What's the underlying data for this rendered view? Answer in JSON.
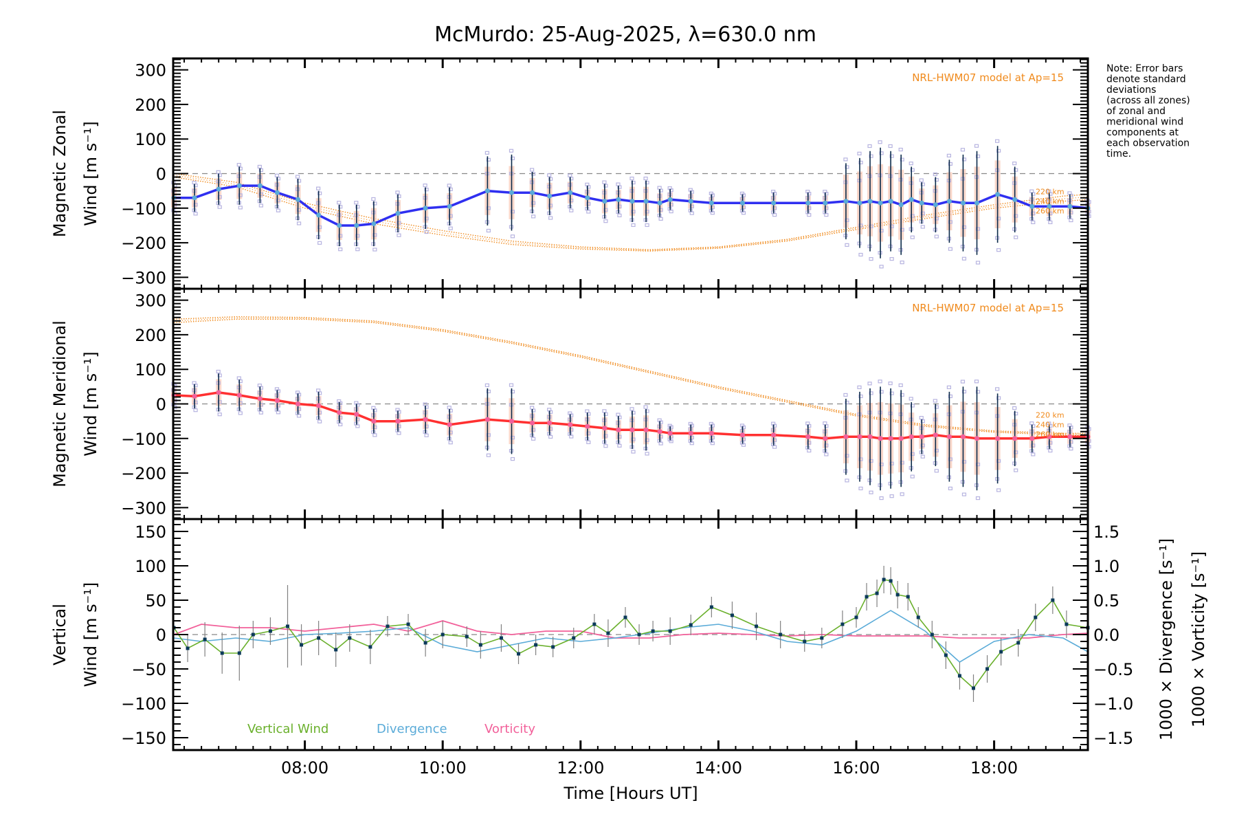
{
  "chart_data": {
    "type": "line",
    "title": "McMurdo: 25-Aug-2025, λ=630.0 nm",
    "note": [
      "Note: Error bars",
      "denote standard",
      "deviations",
      "(across all zones)",
      "of zonal and",
      "meridional wind",
      "components at",
      "each observation",
      "time."
    ],
    "xlabel": "Time [Hours UT]",
    "xlim": [
      6.09,
      19.36
    ],
    "x_ticks": [
      8,
      10,
      12,
      14,
      16,
      18
    ],
    "x_tick_labels": [
      "08:00",
      "10:00",
      "12:00",
      "14:00",
      "16:00",
      "18:00"
    ],
    "colors": {
      "zonal": "#2f2ff0",
      "meridional": "#ff3030",
      "model": "#f08a1c",
      "vertical": "#6ab02c",
      "divergence": "#5aabd8",
      "vorticity": "#f2609a",
      "scatter": "#b7b4e0",
      "point": "#5aabd8",
      "zero_line": "#888888"
    },
    "panels": [
      {
        "id": "zonal",
        "ylabel_line1": "Magnetic Zonal",
        "ylabel_line2": "Wind [m s⁻¹]",
        "ylim": [
          -333,
          333
        ],
        "y_ticks": [
          300,
          200,
          100,
          0,
          -100,
          -200,
          -300
        ],
        "y_tick_labels": [
          "300",
          "200",
          "100",
          "0",
          "−100",
          "−200",
          "−300"
        ],
        "model_label": "NRL-HWM07 model at Ap=15",
        "km_labels": [
          "220 km",
          "240 km",
          "260 km"
        ],
        "x": [
          6.1,
          6.4,
          6.75,
          7.05,
          7.35,
          7.6,
          7.9,
          8.2,
          8.5,
          8.75,
          9.0,
          9.35,
          9.75,
          10.1,
          10.65,
          11.0,
          11.3,
          11.55,
          11.85,
          12.1,
          12.35,
          12.55,
          12.75,
          12.95,
          13.15,
          13.3,
          13.6,
          13.9,
          14.35,
          14.8,
          15.3,
          15.55,
          15.85,
          16.05,
          16.2,
          16.35,
          16.5,
          16.65,
          16.8,
          16.95,
          17.15,
          17.35,
          17.55,
          17.75,
          18.05,
          18.3,
          18.55,
          18.8,
          19.1,
          19.36
        ],
        "values": [
          -70,
          -70,
          -45,
          -35,
          -35,
          -55,
          -75,
          -120,
          -150,
          -150,
          -145,
          -115,
          -100,
          -95,
          -50,
          -55,
          -55,
          -65,
          -55,
          -70,
          -80,
          -75,
          -80,
          -80,
          -85,
          -75,
          -80,
          -85,
          -85,
          -85,
          -85,
          -85,
          -80,
          -85,
          -80,
          -85,
          -80,
          -90,
          -75,
          -85,
          -90,
          -80,
          -85,
          -85,
          -60,
          -75,
          -95,
          -95,
          -95,
          -100
        ],
        "errors": [
          40,
          40,
          45,
          55,
          50,
          45,
          60,
          70,
          60,
          60,
          65,
          55,
          60,
          55,
          100,
          110,
          60,
          55,
          45,
          35,
          50,
          40,
          60,
          60,
          40,
          30,
          30,
          25,
          25,
          30,
          30,
          30,
          110,
          130,
          145,
          160,
          145,
          145,
          95,
          60,
          80,
          120,
          140,
          150,
          140,
          95,
          40,
          40,
          35,
          20
        ],
        "model_x": [
          6.1,
          7.0,
          8.0,
          9.0,
          10.0,
          11.0,
          12.0,
          13.0,
          14.0,
          15.0,
          16.0,
          17.0,
          18.0,
          19.0,
          19.36
        ],
        "model_220": [
          0,
          -25,
          -85,
          -130,
          -165,
          -195,
          -212,
          -220,
          -212,
          -190,
          -155,
          -120,
          -90,
          -65,
          -60
        ],
        "model_260": [
          -10,
          -38,
          -100,
          -145,
          -178,
          -205,
          -218,
          -224,
          -216,
          -195,
          -162,
          -130,
          -100,
          -80,
          -75
        ]
      },
      {
        "id": "meridional",
        "ylabel_line1": "Magnetic Meridional",
        "ylabel_line2": "Wind [m s⁻¹]",
        "ylim": [
          -333,
          333
        ],
        "y_ticks": [
          300,
          200,
          100,
          0,
          -100,
          -200,
          -300
        ],
        "y_tick_labels": [
          "300",
          "200",
          "100",
          "0",
          "−100",
          "−200",
          "−300"
        ],
        "model_label": "NRL-HWM07 model at Ap=15",
        "km_labels": [
          "220 km",
          "240 km",
          "260 km"
        ],
        "x": [
          6.1,
          6.4,
          6.75,
          7.05,
          7.35,
          7.6,
          7.9,
          8.2,
          8.5,
          8.75,
          9.0,
          9.35,
          9.75,
          10.1,
          10.65,
          11.0,
          11.3,
          11.55,
          11.85,
          12.1,
          12.35,
          12.55,
          12.75,
          12.95,
          13.15,
          13.3,
          13.6,
          13.9,
          14.35,
          14.8,
          15.3,
          15.55,
          15.85,
          16.05,
          16.2,
          16.35,
          16.5,
          16.65,
          16.8,
          16.95,
          17.15,
          17.35,
          17.55,
          17.75,
          18.05,
          18.3,
          18.55,
          18.8,
          19.1,
          19.36
        ],
        "values": [
          25,
          22,
          33,
          25,
          15,
          10,
          0,
          -5,
          -25,
          -30,
          -50,
          -50,
          -45,
          -60,
          -45,
          -50,
          -55,
          -55,
          -60,
          -65,
          -70,
          -75,
          -75,
          -75,
          -80,
          -85,
          -85,
          -85,
          -90,
          -90,
          -95,
          -100,
          -95,
          -95,
          -95,
          -100,
          -100,
          -100,
          -95,
          -95,
          -90,
          -95,
          -95,
          -100,
          -100,
          -100,
          -100,
          -95,
          -95,
          -95
        ],
        "errors": [
          30,
          35,
          55,
          45,
          35,
          30,
          30,
          40,
          30,
          30,
          35,
          30,
          40,
          45,
          90,
          95,
          40,
          35,
          30,
          40,
          45,
          40,
          55,
          60,
          30,
          20,
          25,
          25,
          25,
          30,
          35,
          40,
          110,
          130,
          140,
          150,
          145,
          140,
          100,
          50,
          90,
          130,
          145,
          150,
          130,
          80,
          40,
          35,
          30,
          25
        ],
        "model_x": [
          6.1,
          7.0,
          8.0,
          9.0,
          10.0,
          11.0,
          12.0,
          13.0,
          14.0,
          15.0,
          16.0,
          17.0,
          18.0,
          19.0,
          19.36
        ],
        "model_220": [
          245,
          252,
          250,
          240,
          215,
          180,
          140,
          95,
          50,
          10,
          -30,
          -60,
          -78,
          -85,
          -85
        ],
        "model_260": [
          235,
          245,
          245,
          235,
          210,
          175,
          135,
          90,
          45,
          5,
          -35,
          -65,
          -82,
          -90,
          -90
        ]
      },
      {
        "id": "vertical",
        "ylabel_line1": "Vertical",
        "ylabel_line2": "Wind [m s⁻¹]",
        "ylim": [
          -168,
          168
        ],
        "y_ticks": [
          150,
          100,
          50,
          0,
          -50,
          -100,
          -150
        ],
        "y_tick_labels": [
          "150",
          "100",
          "50",
          "0",
          "−50",
          "−100",
          "−150"
        ],
        "y2_label_div": "1000 × Divergence [s⁻¹]",
        "y2_label_vort": "1000 × Vorticity [s⁻¹]",
        "y2lim": [
          -1.68,
          1.68
        ],
        "y2_ticks": [
          1.5,
          1.0,
          0.5,
          0.0,
          -0.5,
          -1.0,
          -1.5
        ],
        "y2_tick_labels": [
          "1.5",
          "1.0",
          "0.5",
          "0.0",
          "−0.5",
          "−1.0",
          "−1.5"
        ],
        "legend": [
          "Vertical Wind",
          "Divergence",
          "Vorticity"
        ],
        "vertical_x": [
          6.1,
          6.3,
          6.55,
          6.8,
          7.05,
          7.25,
          7.5,
          7.75,
          7.95,
          8.2,
          8.45,
          8.65,
          8.95,
          9.2,
          9.5,
          9.75,
          10.0,
          10.35,
          10.55,
          10.85,
          11.1,
          11.35,
          11.6,
          11.9,
          12.2,
          12.4,
          12.65,
          12.85,
          13.05,
          13.3,
          13.6,
          13.9,
          14.2,
          14.55,
          14.9,
          15.25,
          15.5,
          15.8,
          16.0,
          16.15,
          16.3,
          16.4,
          16.5,
          16.6,
          16.75,
          16.9,
          17.1,
          17.3,
          17.5,
          17.7,
          17.9,
          18.1,
          18.35,
          18.6,
          18.85,
          19.05,
          19.36
        ],
        "vertical": [
          10,
          -20,
          -7,
          -27,
          -27,
          0,
          5,
          12,
          -15,
          -5,
          -22,
          -5,
          -18,
          12,
          15,
          -12,
          0,
          -3,
          -15,
          -5,
          -28,
          -15,
          -18,
          -5,
          15,
          2,
          25,
          0,
          5,
          5,
          14,
          40,
          28,
          12,
          0,
          -10,
          -5,
          15,
          25,
          55,
          60,
          80,
          78,
          58,
          55,
          25,
          0,
          -30,
          -60,
          -78,
          -50,
          -25,
          -12,
          25,
          50,
          15,
          10
        ],
        "vertical_err": [
          20,
          20,
          25,
          30,
          40,
          20,
          20,
          60,
          30,
          25,
          25,
          20,
          25,
          15,
          15,
          20,
          20,
          15,
          20,
          20,
          15,
          15,
          15,
          15,
          15,
          20,
          15,
          15,
          15,
          20,
          15,
          15,
          20,
          20,
          20,
          15,
          15,
          20,
          15,
          20,
          20,
          20,
          20,
          20,
          20,
          15,
          20,
          20,
          20,
          20,
          20,
          20,
          20,
          20,
          20,
          20,
          20
        ],
        "div_x": [
          6.1,
          6.5,
          7.0,
          7.5,
          8.0,
          8.5,
          9.0,
          9.5,
          10.0,
          10.5,
          11.0,
          11.5,
          12.0,
          12.5,
          13.0,
          13.5,
          14.0,
          14.5,
          15.0,
          15.5,
          16.0,
          16.5,
          17.0,
          17.5,
          18.0,
          18.5,
          19.0,
          19.36
        ],
        "divergence": [
          -0.05,
          -0.1,
          -0.05,
          -0.1,
          0.0,
          0.02,
          0.05,
          0.1,
          -0.15,
          -0.25,
          -0.15,
          -0.05,
          -0.1,
          -0.05,
          0.02,
          0.1,
          0.15,
          0.05,
          -0.1,
          -0.15,
          0.05,
          0.35,
          0.05,
          -0.4,
          -0.1,
          0.0,
          -0.05,
          -0.25
        ],
        "vort_x": [
          6.1,
          6.5,
          7.0,
          7.5,
          8.0,
          8.5,
          9.0,
          9.5,
          10.0,
          10.5,
          11.0,
          11.5,
          12.0,
          12.5,
          13.0,
          13.5,
          14.0,
          14.5,
          15.0,
          15.5,
          16.0,
          16.5,
          17.0,
          17.5,
          18.0,
          18.5,
          19.0,
          19.36
        ],
        "vorticity": [
          0.0,
          0.15,
          0.1,
          0.1,
          0.05,
          0.1,
          0.15,
          0.05,
          0.2,
          0.05,
          0.0,
          0.05,
          0.05,
          -0.05,
          -0.05,
          0.0,
          0.02,
          0.0,
          -0.02,
          0.0,
          -0.02,
          -0.02,
          -0.02,
          -0.05,
          -0.05,
          -0.05,
          0.0,
          0.02
        ]
      }
    ]
  }
}
